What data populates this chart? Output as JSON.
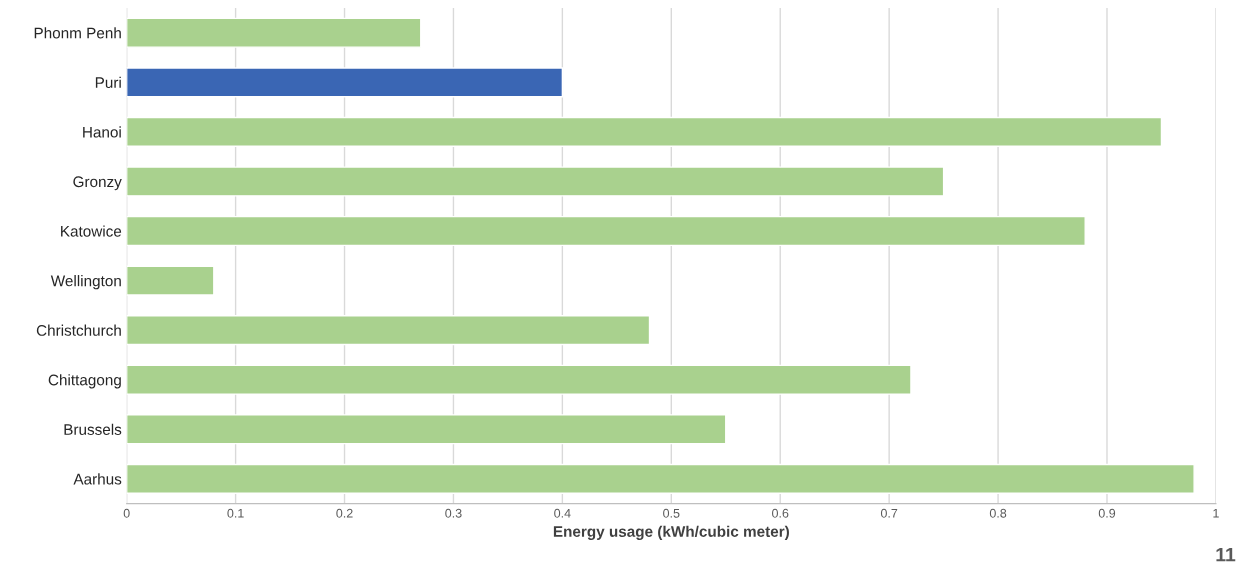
{
  "chart_data": {
    "type": "bar",
    "orientation": "horizontal",
    "xlabel": "Energy usage (kWh/cubic meter)",
    "categories": [
      "Phonm Penh",
      "Puri",
      "Hanoi",
      "Gronzy",
      "Katowice",
      "Wellington",
      "Christchurch",
      "Chittagong",
      "Brussels",
      "Aarhus"
    ],
    "values": [
      0.27,
      0.4,
      0.95,
      0.75,
      0.88,
      0.08,
      0.48,
      0.72,
      0.55,
      0.98
    ],
    "colors": [
      "#a9d18e",
      "#3a66b4",
      "#a9d18e",
      "#a9d18e",
      "#a9d18e",
      "#a9d18e",
      "#a9d18e",
      "#a9d18e",
      "#a9d18e",
      "#a9d18e"
    ],
    "xlim": [
      0,
      1
    ],
    "xticks": [
      0,
      0.1,
      0.2,
      0.3,
      0.4,
      0.5,
      0.6,
      0.7,
      0.8,
      0.9,
      1
    ],
    "grid": "x",
    "legend": false,
    "annotations": [
      "11"
    ]
  }
}
